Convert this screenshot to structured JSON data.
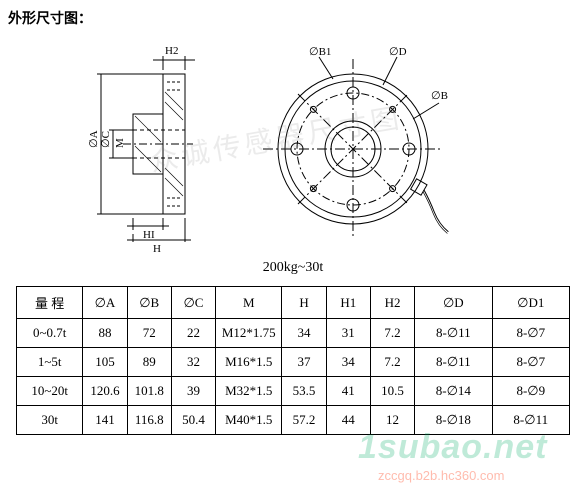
{
  "title": "外形尺寸图：",
  "caption": "200kg~30t",
  "drawing": {
    "stroke": "#000000",
    "stroke_width": 1,
    "background": "#ffffff",
    "side_view": {
      "labels": {
        "H2": "H2",
        "HI": "HI",
        "H": "H",
        "M": "M",
        "phiC": "∅C",
        "phiA": "∅A"
      }
    },
    "front_view": {
      "labels": {
        "phiB1": "∅B1",
        "phiD": "∅D",
        "phiB": "∅B"
      }
    }
  },
  "table": {
    "columns": [
      "量 程",
      "∅A",
      "∅B",
      "∅C",
      "M",
      "H",
      "H1",
      "H2",
      "∅D",
      "∅D1"
    ],
    "rows": [
      [
        "0~0.7t",
        "88",
        "72",
        "22",
        "M12*1.75",
        "34",
        "31",
        "7.2",
        "8-∅11",
        "8-∅7"
      ],
      [
        "1~5t",
        "105",
        "89",
        "32",
        "M16*1.5",
        "37",
        "34",
        "7.2",
        "8-∅11",
        "8-∅7"
      ],
      [
        "10~20t",
        "120.6",
        "101.8",
        "39",
        "M32*1.5",
        "53.5",
        "41",
        "10.5",
        "8-∅14",
        "8-∅9"
      ],
      [
        "30t",
        "141",
        "116.8",
        "50.4",
        "M40*1.5",
        "57.2",
        "44",
        "12",
        "8-∅18",
        "8-∅11"
      ]
    ],
    "col_widths_pct": [
      12,
      8,
      8,
      8,
      12,
      8,
      8,
      8,
      14,
      14
    ]
  },
  "watermarks": {
    "wm1": "1subao.net",
    "wm2": "zccgq.b2b.hc360.com",
    "wm3": "众诚传感器尺寸图"
  }
}
